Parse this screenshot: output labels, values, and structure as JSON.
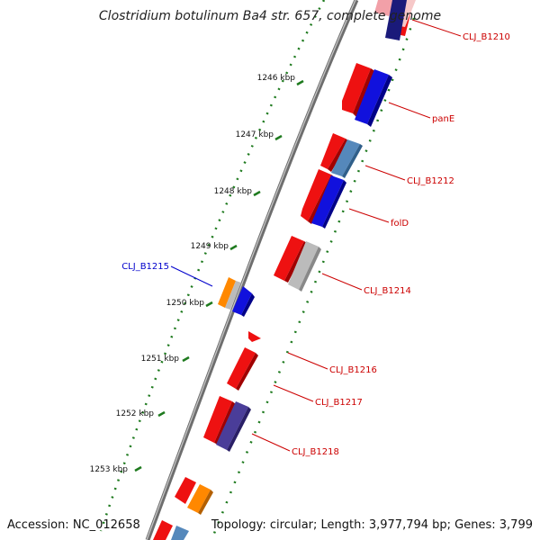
{
  "title": "Clostridium botulinum Ba4 str. 657, complete genome",
  "accession": "Accession: NC_012658",
  "topology": "Topology: circular; Length: 3,977,794 bp; Genes: 3,799",
  "ticks": [
    {
      "label": "1246 kbp"
    },
    {
      "label": "1247 kbp"
    },
    {
      "label": "1248 kbp"
    },
    {
      "label": "1249 kbp"
    },
    {
      "label": "1250 kbp"
    },
    {
      "label": "1251 kbp"
    },
    {
      "label": "1252 kbp"
    },
    {
      "label": "1253 kbp"
    }
  ],
  "gene_labels": [
    {
      "text": "CLJ_B1210",
      "color": "#cc0000"
    },
    {
      "text": "panE",
      "color": "#cc0000"
    },
    {
      "text": "CLJ_B1212",
      "color": "#cc0000"
    },
    {
      "text": "folD",
      "color": "#cc0000"
    },
    {
      "text": "CLJ_B1214",
      "color": "#cc0000"
    },
    {
      "text": "CLJ_B1215",
      "color": "#0000cc"
    },
    {
      "text": "CLJ_B1216",
      "color": "#cc0000"
    },
    {
      "text": "CLJ_B1217",
      "color": "#cc0000"
    },
    {
      "text": "CLJ_B1218",
      "color": "#cc0000"
    }
  ],
  "colors": {
    "backbone": "#8a8a8a",
    "tick_dots": "#1e7a1e",
    "red": "#ee1111",
    "blue": "#1111dd",
    "navy": "#1a1a7a",
    "steel": "#5588bb",
    "gray": "#bbbbbb",
    "orange": "#ff8800",
    "indigo": "#4a3d99",
    "pink": "#f2a0a8"
  }
}
